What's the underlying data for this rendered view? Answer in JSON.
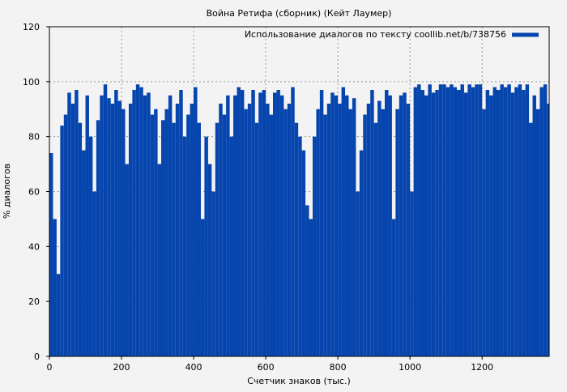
{
  "chart_data": {
    "type": "bar",
    "title": "Война Ретифа (сборник) (Кейт Лаумер)",
    "xlabel": "Счетчик знаков (тыс.)",
    "ylabel": "% диалогов",
    "xlim": [
      0,
      1386
    ],
    "ylim": [
      0,
      120
    ],
    "xticks": [
      0,
      200,
      400,
      600,
      800,
      1000,
      1200
    ],
    "yticks": [
      0,
      20,
      40,
      60,
      80,
      100,
      120
    ],
    "grid": true,
    "legend_placement": "top-right",
    "series": [
      {
        "name": "Использование диалогов по тексту coollib.net/b/738756",
        "color": "#0645ad",
        "bin_width": 10,
        "x": [
          0,
          10,
          20,
          30,
          40,
          50,
          60,
          70,
          80,
          90,
          100,
          110,
          120,
          130,
          140,
          150,
          160,
          170,
          180,
          190,
          200,
          210,
          220,
          230,
          240,
          250,
          260,
          270,
          280,
          290,
          300,
          310,
          320,
          330,
          340,
          350,
          360,
          370,
          380,
          390,
          400,
          410,
          420,
          430,
          440,
          450,
          460,
          470,
          480,
          490,
          500,
          510,
          520,
          530,
          540,
          550,
          560,
          570,
          580,
          590,
          600,
          610,
          620,
          630,
          640,
          650,
          660,
          670,
          680,
          690,
          700,
          710,
          720,
          730,
          740,
          750,
          760,
          770,
          780,
          790,
          800,
          810,
          820,
          830,
          840,
          850,
          860,
          870,
          880,
          890,
          900,
          910,
          920,
          930,
          940,
          950,
          960,
          970,
          980,
          990,
          1000,
          1010,
          1020,
          1030,
          1040,
          1050,
          1060,
          1070,
          1080,
          1090,
          1100,
          1110,
          1120,
          1130,
          1140,
          1150,
          1160,
          1170,
          1180,
          1190,
          1200,
          1210,
          1220,
          1230,
          1240,
          1250,
          1260,
          1270,
          1280,
          1290,
          1300,
          1310,
          1320,
          1330,
          1340,
          1350,
          1360,
          1370,
          1380
        ],
        "values": [
          74,
          50,
          30,
          84,
          88,
          96,
          92,
          97,
          85,
          75,
          95,
          80,
          60,
          86,
          95,
          99,
          94,
          92,
          97,
          93,
          90,
          70,
          92,
          97,
          99,
          98,
          95,
          96,
          88,
          90,
          70,
          86,
          90,
          95,
          85,
          92,
          97,
          80,
          88,
          92,
          98,
          85,
          50,
          80,
          70,
          60,
          85,
          92,
          88,
          95,
          80,
          95,
          98,
          97,
          90,
          92,
          97,
          85,
          96,
          97,
          92,
          88,
          96,
          97,
          95,
          90,
          92,
          98,
          85,
          80,
          75,
          55,
          50,
          80,
          90,
          97,
          88,
          92,
          96,
          95,
          92,
          98,
          95,
          90,
          94,
          60,
          75,
          88,
          92,
          97,
          85,
          93,
          90,
          97,
          95,
          50,
          90,
          95,
          96,
          92,
          60,
          98,
          99,
          97,
          95,
          99,
          96,
          97,
          99,
          99,
          98,
          99,
          98,
          97,
          99,
          96,
          99,
          98,
          99,
          99,
          90,
          97,
          95,
          98,
          97,
          99,
          98,
          99,
          96,
          98,
          99,
          97,
          99,
          85,
          95,
          90,
          98,
          99,
          92
        ]
      }
    ]
  }
}
